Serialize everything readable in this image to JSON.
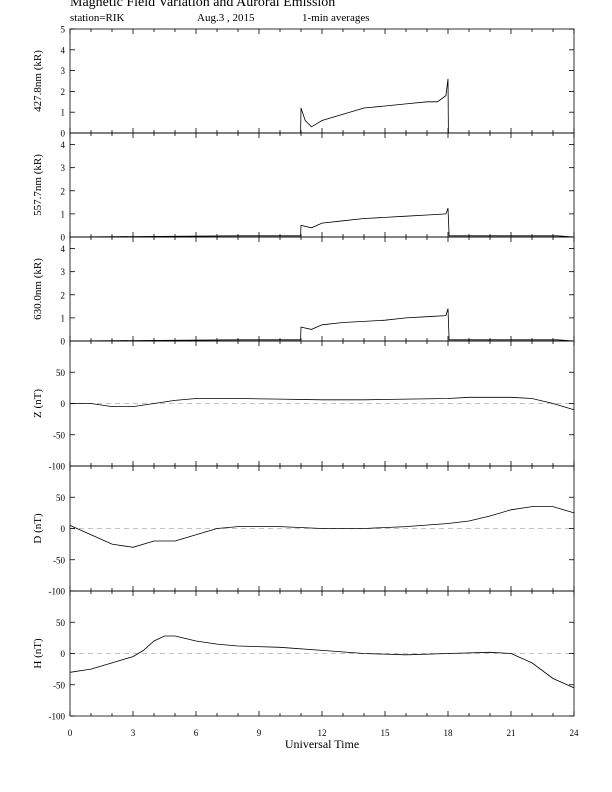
{
  "header": {
    "title": "Magnetic Field Variation and Auroral Emission",
    "station": "station=RIK",
    "date": "Aug.3   , 2015",
    "averaging": "1-min averages"
  },
  "chart_data": {
    "type": "line",
    "xlabel": "Universal Time",
    "xlim": [
      0,
      24
    ],
    "xticks": [
      0,
      3,
      6,
      9,
      12,
      15,
      18,
      21,
      24
    ],
    "grid": false,
    "panels": [
      {
        "name": "427.8nm",
        "ylabel": "427.8nm (kR)",
        "ylim": [
          0,
          5
        ],
        "yticks": [
          0,
          1,
          2,
          3,
          4,
          5
        ],
        "zero_line": false,
        "series": [
          {
            "x": [
              0,
              10.98,
              11.0,
              11.2,
              11.5,
              12,
              13,
              14,
              15,
              16,
              17,
              17.5,
              17.9,
              18.0,
              18.02
            ],
            "y": [
              0,
              0,
              1.2,
              0.6,
              0.3,
              0.6,
              0.9,
              1.2,
              1.3,
              1.4,
              1.5,
              1.5,
              1.8,
              2.6,
              0
            ]
          }
        ]
      },
      {
        "name": "557.7nm",
        "ylabel": "557.7nm (kR)",
        "ylim": [
          0,
          4.5
        ],
        "yticks": [
          0,
          1,
          2,
          3,
          4
        ],
        "zero_line": false,
        "series": [
          {
            "x": [
              0,
              8,
              10.98,
              11.0,
              11.5,
              12,
              13,
              14,
              15,
              16,
              17,
              17.9,
              18.0,
              18.05,
              23.2,
              24
            ],
            "y": [
              0,
              0.05,
              0.05,
              0.5,
              0.4,
              0.6,
              0.7,
              0.8,
              0.85,
              0.9,
              0.95,
              1.0,
              1.25,
              0.05,
              0.05,
              0
            ]
          }
        ]
      },
      {
        "name": "630.0nm",
        "ylabel": "630.0nm (kR)",
        "ylim": [
          0,
          4.5
        ],
        "yticks": [
          0,
          1,
          2,
          3,
          4
        ],
        "zero_line": false,
        "series": [
          {
            "x": [
              0,
              8,
              10.98,
              11.0,
              11.5,
              12,
              13,
              14,
              15,
              16,
              17,
              17.9,
              18.0,
              18.05,
              23.2,
              24
            ],
            "y": [
              0,
              0.05,
              0.05,
              0.6,
              0.5,
              0.7,
              0.8,
              0.85,
              0.9,
              1.0,
              1.05,
              1.1,
              1.4,
              0.05,
              0.05,
              0
            ]
          }
        ]
      },
      {
        "name": "Z",
        "ylabel": "Z (nT)",
        "ylim": [
          -100,
          100
        ],
        "yticks": [
          -100,
          -50,
          0,
          50
        ],
        "zero_line": true,
        "series": [
          {
            "x": [
              0,
              1,
              2,
              3,
              4,
              5,
              6,
              8,
              10,
              12,
              14,
              16,
              18,
              19,
              20,
              21,
              22,
              23,
              24
            ],
            "y": [
              0,
              0,
              -5,
              -5,
              0,
              5,
              8,
              8,
              7,
              6,
              6,
              7,
              8,
              10,
              10,
              10,
              8,
              0,
              -10
            ]
          }
        ]
      },
      {
        "name": "D",
        "ylabel": "D (nT)",
        "ylim": [
          -100,
          100
        ],
        "yticks": [
          -100,
          -50,
          0,
          50
        ],
        "zero_line": true,
        "series": [
          {
            "x": [
              0,
              1,
              2,
              3,
              4,
              5,
              6,
              7,
              8,
              10,
              12,
              14,
              16,
              18,
              19,
              20,
              21,
              22,
              23,
              24
            ],
            "y": [
              5,
              -10,
              -25,
              -30,
              -20,
              -20,
              -10,
              0,
              3,
              3,
              0,
              0,
              3,
              8,
              12,
              20,
              30,
              35,
              35,
              25
            ]
          }
        ]
      },
      {
        "name": "H",
        "ylabel": "H (nT)",
        "ylim": [
          -100,
          100
        ],
        "yticks": [
          -100,
          -50,
          0,
          50
        ],
        "zero_line": true,
        "series": [
          {
            "x": [
              0,
              1,
              2,
              3,
              3.5,
              4,
              4.5,
              5,
              5.5,
              6,
              7,
              8,
              10,
              12,
              14,
              16,
              18,
              20,
              21,
              22,
              23,
              24
            ],
            "y": [
              -30,
              -25,
              -15,
              -5,
              5,
              20,
              28,
              28,
              24,
              20,
              15,
              12,
              10,
              5,
              0,
              -2,
              0,
              2,
              0,
              -15,
              -40,
              -55
            ]
          }
        ]
      }
    ]
  }
}
